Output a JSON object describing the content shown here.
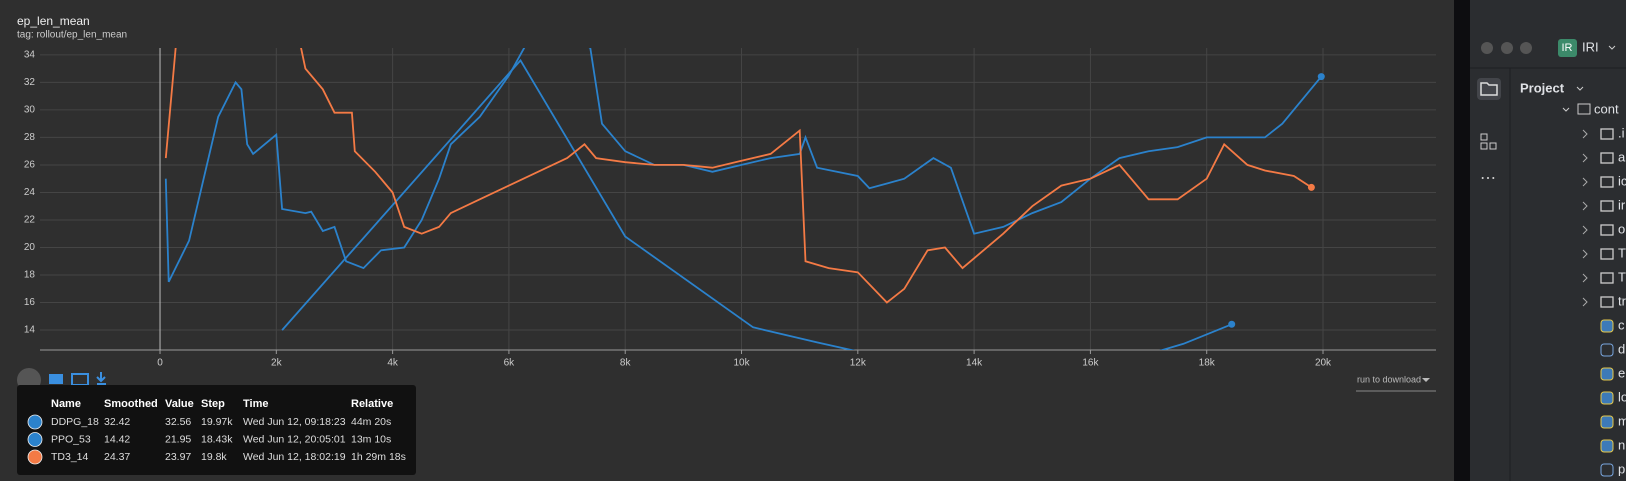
{
  "header": {
    "title": "ep_len_mean",
    "subtitle": "tag: rollout/ep_len_mean"
  },
  "chart_data": {
    "type": "line",
    "xlim": [
      -2064,
      21943
    ],
    "ylim": [
      12.55,
      34.5
    ],
    "xticks": [
      0,
      {
        "value": 2000,
        "label": "2k"
      },
      {
        "value": 4000,
        "label": "4k"
      },
      {
        "value": 6000,
        "label": "6k"
      },
      {
        "value": 8000,
        "label": "8k"
      },
      {
        "value": 10000,
        "label": "10k"
      },
      {
        "value": 12000,
        "label": "12k"
      },
      {
        "value": 14000,
        "label": "14k"
      },
      {
        "value": 16000,
        "label": "16k"
      },
      {
        "value": 18000,
        "label": "18k"
      },
      {
        "value": 20000,
        "label": "20k"
      }
    ],
    "yticks": [
      14,
      16,
      18,
      20,
      22,
      24,
      26,
      28,
      30,
      32,
      34
    ],
    "grid": true,
    "series": [
      {
        "name": "DDPG_18",
        "color": "#2b82cc",
        "x": [
          100,
          150,
          500,
          1000,
          1300,
          1400,
          1500,
          1600,
          2000,
          2100,
          2500,
          2600,
          2800,
          3000,
          3200,
          3500,
          3800,
          4200,
          4500,
          4800,
          5000,
          5500,
          6000,
          6300,
          6800,
          7400,
          7600,
          8000,
          8500,
          9000,
          9500,
          10000,
          10500,
          11000,
          11100,
          11300,
          12000,
          12200,
          12800,
          13300,
          13600,
          14000,
          14500,
          15000,
          15500,
          16000,
          16500,
          17000,
          17500,
          18000,
          19000,
          19300,
          19970
        ],
        "values": [
          25,
          17.5,
          20.5,
          29.5,
          32,
          31.5,
          27.5,
          26.8,
          28.2,
          22.8,
          22.5,
          22.6,
          21.2,
          21.5,
          19,
          18.5,
          19.8,
          20,
          22,
          25,
          27.5,
          29.5,
          32.5,
          34.8,
          36,
          34.5,
          29,
          27,
          26,
          26,
          25.5,
          26,
          26.5,
          26.8,
          28,
          25.8,
          25.2,
          24.3,
          25,
          26.5,
          25.8,
          21,
          21.5,
          22.5,
          23.3,
          25,
          26.5,
          27,
          27.3,
          28,
          28,
          29,
          32.42
        ]
      },
      {
        "name": "PPO_53",
        "color": "#2b82cc",
        "x": [
          2100,
          6200,
          8000,
          10200,
          11300,
          13000,
          16000,
          17600,
          18430
        ],
        "values": [
          14,
          33.6,
          20.8,
          14.2,
          13.1,
          11.5,
          11,
          13,
          14.42
        ]
      },
      {
        "name": "TD3_14",
        "color": "#f47a45",
        "x": [
          100,
          300,
          2400,
          2500,
          2800,
          3000,
          3300,
          3350,
          3700,
          4000,
          4200,
          4500,
          4800,
          5000,
          5500,
          6000,
          6500,
          7000,
          7300,
          7500,
          8000,
          8500,
          9000,
          9500,
          10000,
          10500,
          11000,
          11100,
          11500,
          12000,
          12500,
          12800,
          13200,
          13500,
          13800,
          14500,
          15000,
          15500,
          16000,
          16500,
          17000,
          17500,
          18000,
          18300,
          18700,
          19000,
          19500,
          19800
        ],
        "values": [
          26.5,
          36,
          35,
          33,
          31.5,
          29.8,
          29.8,
          27,
          25.5,
          24,
          21.5,
          21,
          21.5,
          22.5,
          23.5,
          24.5,
          25.5,
          26.5,
          27.5,
          26.5,
          26.2,
          26,
          26,
          25.8,
          26.3,
          26.8,
          28.5,
          19,
          18.5,
          18.2,
          16,
          17,
          19.8,
          20,
          18.5,
          21,
          23,
          24.5,
          25,
          26,
          23.5,
          23.5,
          25,
          27.5,
          26,
          25.6,
          25.2,
          24.37
        ]
      }
    ]
  },
  "download": "run to download",
  "tooltip": {
    "columns": [
      "Name",
      "Smoothed",
      "Value",
      "Step",
      "Time",
      "Relative"
    ],
    "rows": [
      [
        32.42,
        32.56,
        "19.97k",
        "Wed Jun 12, 09:18:23",
        "44m 20s"
      ],
      [
        14.42,
        21.95,
        "18.43k",
        "Wed Jun 12, 20:05:01",
        "13m 10s"
      ],
      [
        24.37,
        23.97,
        "19.8k",
        "Wed Jun 12, 18:02:19",
        "1h 29m 18s"
      ]
    ]
  },
  "ide": {
    "badge": "IR",
    "project_name": "IRI",
    "panel_title": "Project",
    "root": "cont",
    "folders": [
      ".i",
      "a",
      "ic",
      "ir",
      "o",
      "T",
      "T",
      "tr"
    ],
    "files": [
      "c",
      "d",
      "e",
      "lo",
      "m",
      "n",
      "p"
    ]
  }
}
